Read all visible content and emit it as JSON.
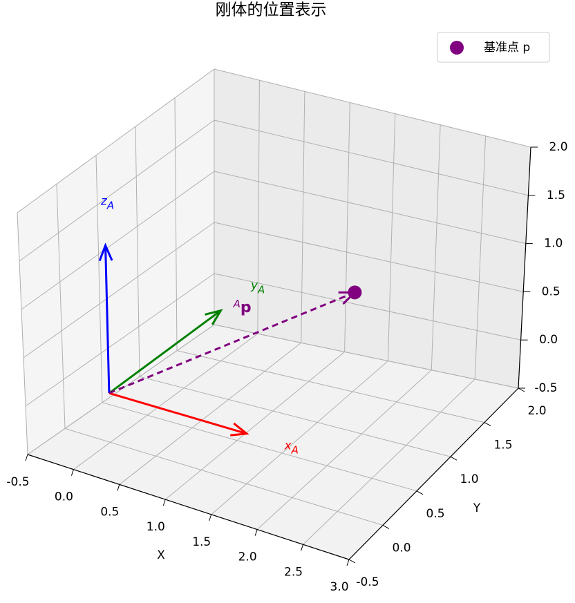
{
  "chart_data": {
    "type": "scatter3d",
    "title": "刚体的位置表示",
    "xlabel": "X",
    "ylabel": "Y",
    "xlim": [
      -0.5,
      3.0
    ],
    "ylim": [
      -0.5,
      2.0
    ],
    "zlim": [
      -0.5,
      2.0
    ],
    "xticks": [
      -0.5,
      {
        "value": 0,
        "label": "0.0"
      },
      0.5,
      {
        "value": 1,
        "label": "1.0"
      },
      1.5,
      {
        "value": 2,
        "label": "2.0"
      },
      2.5,
      {
        "value": 3,
        "label": "3.0"
      }
    ],
    "yticks": [
      -0.5,
      {
        "value": 0,
        "label": "0.0"
      },
      0.5,
      {
        "value": 1,
        "label": "1.0"
      },
      1.5,
      {
        "value": 2,
        "label": "2.0"
      }
    ],
    "zticks": [
      -0.5,
      {
        "value": 0,
        "label": "0.0"
      },
      0.5,
      {
        "value": 1,
        "label": "1.0"
      },
      1.5,
      {
        "value": 2,
        "label": "2.0"
      }
    ],
    "grid": true,
    "legend": "upper right",
    "origin": [
      0,
      0,
      0
    ],
    "vectors": [
      {
        "label": "x",
        "sub": "A",
        "color": "red",
        "end": [
          1.5,
          0,
          0
        ]
      },
      {
        "label": "y",
        "sub": "A",
        "color": "green",
        "end": [
          0,
          1.5,
          0
        ]
      },
      {
        "label": "z",
        "sub": "A",
        "color": "blue",
        "end": [
          0,
          0,
          1.5
        ]
      }
    ],
    "position_vector": {
      "label": "p",
      "sup": "A",
      "color": "purple"
    },
    "series": [
      {
        "name": "基准点 p",
        "color": "purple",
        "x": [
          1.5
        ],
        "y": [
          1.5
        ],
        "z": [
          0.5
        ]
      }
    ]
  }
}
